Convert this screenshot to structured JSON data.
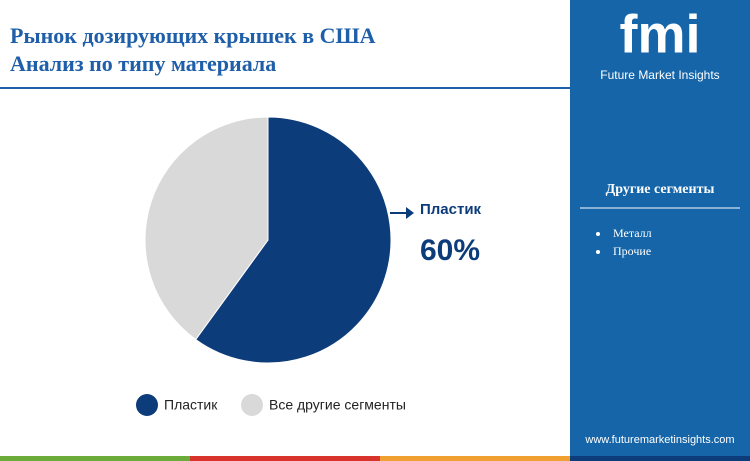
{
  "chart_data": {
    "type": "pie",
    "title": "Рынок дозирующих крышек в США",
    "subtitle": "Анализ по типу материала",
    "categories": [
      "Пластик",
      "Все другие сегменты"
    ],
    "values": [
      60,
      40
    ],
    "value_labels": [
      "60%",
      null
    ],
    "colors": [
      "#0d3c7a",
      "#d9d9d9"
    ],
    "legend": "bottom"
  },
  "sidebar": {
    "logo": "fmi",
    "brand": "Future Market Insights",
    "heading": "Другие сегменты",
    "items": [
      "Металл",
      "Прочие"
    ],
    "url": "www.futuremarketinsights.com"
  }
}
